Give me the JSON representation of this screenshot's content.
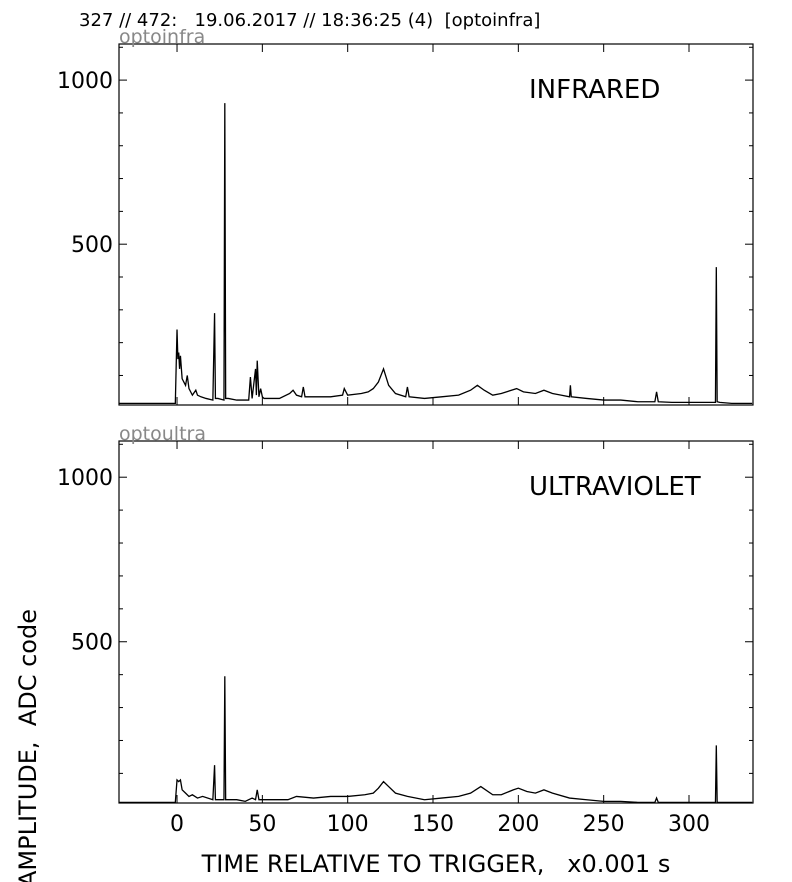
{
  "header": "327 // 472:   19.06.2017 // 18:36:25 (4)  [optoinfra]",
  "chart_data": [
    {
      "type": "line",
      "subtitle": "optoinfra",
      "annotation": "INFRARED",
      "color": "#000000",
      "show_xtick_labels": false,
      "xlim": [
        -34,
        337.5
      ],
      "xticks": [
        0,
        50,
        100,
        150,
        200,
        250,
        300
      ],
      "ylim": [
        10,
        1110
      ],
      "yticks": [
        500,
        1000
      ],
      "minor_yticks": [
        100,
        200,
        300,
        400,
        600,
        700,
        800,
        900,
        1100
      ],
      "x": [
        -34,
        -1,
        0,
        0.5,
        1,
        1.5,
        2,
        3,
        4,
        5,
        6,
        7,
        9,
        11,
        12,
        14,
        17,
        21,
        22,
        22.5,
        24,
        27.5,
        28,
        28.5,
        30,
        35,
        42,
        43,
        44,
        46,
        46.5,
        47,
        48,
        49,
        50,
        51,
        55,
        60,
        66,
        68,
        70,
        73,
        74,
        75,
        80,
        90,
        97,
        98,
        100,
        108,
        112,
        115,
        118,
        121,
        124,
        128,
        134,
        135,
        136,
        145,
        155,
        165,
        172,
        176,
        180,
        185,
        190,
        199,
        203,
        210,
        215,
        220,
        225,
        230,
        230.5,
        231,
        240,
        250,
        260,
        270,
        280,
        281,
        282,
        290,
        300,
        310,
        315.5,
        316,
        316.5,
        318,
        325,
        337
      ],
      "values": [
        15,
        15,
        240,
        150,
        170,
        120,
        160,
        90,
        80,
        70,
        100,
        60,
        40,
        55,
        40,
        35,
        30,
        25,
        290,
        30,
        30,
        25,
        930,
        30,
        30,
        25,
        25,
        95,
        30,
        120,
        40,
        145,
        35,
        60,
        35,
        30,
        30,
        30,
        45,
        55,
        40,
        35,
        65,
        35,
        35,
        35,
        40,
        60,
        40,
        45,
        50,
        60,
        80,
        120,
        70,
        45,
        35,
        65,
        35,
        30,
        35,
        40,
        55,
        70,
        55,
        40,
        45,
        60,
        50,
        45,
        55,
        45,
        40,
        35,
        70,
        35,
        30,
        25,
        25,
        20,
        20,
        50,
        20,
        18,
        18,
        18,
        18,
        430,
        20,
        18,
        15,
        15
      ]
    },
    {
      "type": "line",
      "subtitle": "optoultra",
      "annotation": "ULTRAVIOLET",
      "color": "#000000",
      "show_xtick_labels": true,
      "xlabel": "TIME RELATIVE TO TRIGGER,   x0.001 s",
      "ylabel": "AMPLITUDE,  ADC code",
      "xlim": [
        -34,
        337.5
      ],
      "xticks": [
        0,
        50,
        100,
        150,
        200,
        250,
        300
      ],
      "ylim": [
        10,
        1110
      ],
      "yticks": [
        500,
        1000
      ],
      "minor_yticks": [
        100,
        200,
        300,
        400,
        600,
        700,
        800,
        900,
        1100
      ],
      "x": [
        -34,
        -1,
        0,
        1,
        2,
        3,
        5,
        7,
        9,
        12,
        15,
        21,
        22,
        22.5,
        27.5,
        28,
        28.5,
        35,
        40,
        44,
        46,
        47,
        48,
        55,
        65,
        70,
        80,
        90,
        100,
        110,
        115,
        118,
        121,
        124,
        128,
        135,
        145,
        155,
        165,
        172,
        178,
        185,
        190,
        197,
        200,
        205,
        210,
        215,
        220,
        230,
        240,
        250,
        260,
        270,
        280,
        281,
        282,
        300,
        315.5,
        316,
        316.5,
        320,
        337
      ],
      "values": [
        12,
        12,
        80,
        75,
        80,
        50,
        40,
        30,
        35,
        25,
        30,
        20,
        125,
        20,
        20,
        395,
        20,
        20,
        15,
        25,
        20,
        50,
        20,
        20,
        20,
        30,
        25,
        30,
        30,
        35,
        40,
        55,
        75,
        60,
        40,
        30,
        20,
        25,
        30,
        40,
        60,
        35,
        35,
        50,
        55,
        45,
        40,
        50,
        40,
        25,
        20,
        15,
        15,
        12,
        12,
        25,
        12,
        12,
        12,
        185,
        12,
        12,
        12
      ]
    }
  ]
}
